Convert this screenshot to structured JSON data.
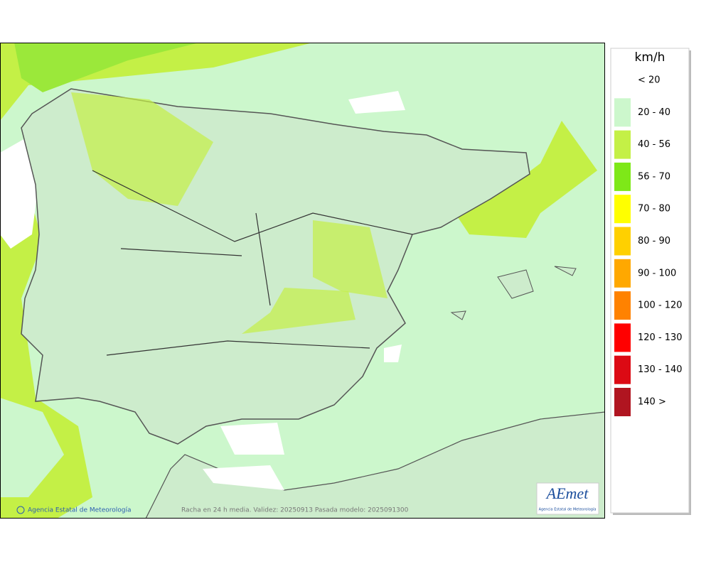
{
  "map": {
    "footer_credit": "Agencia Estatal de Meteorología",
    "footer_caption": "Racha en 24 h media. Validez: 20250913 Pasada modelo: 2025091300",
    "logo": {
      "name": "AEmet",
      "subtitle": "Agencia Estatal de Meteorología"
    }
  },
  "legend": {
    "title": "km/h",
    "items": [
      {
        "label": "< 20",
        "color": "#ffffff"
      },
      {
        "label": "20 - 40",
        "color": "#ccf7cc"
      },
      {
        "label": "40 - 56",
        "color": "#c4f046"
      },
      {
        "label": "56 - 70",
        "color": "#7ee818"
      },
      {
        "label": "70 - 80",
        "color": "#ffff00"
      },
      {
        "label": "80 - 90",
        "color": "#ffd000"
      },
      {
        "label": "90 - 100",
        "color": "#ffa800"
      },
      {
        "label": "100 - 120",
        "color": "#ff8200"
      },
      {
        "label": "120 - 130",
        "color": "#ff0000"
      },
      {
        "label": "130 - 140",
        "color": "#dc0a14"
      },
      {
        "label": "140 >",
        "color": "#b01520"
      }
    ]
  }
}
